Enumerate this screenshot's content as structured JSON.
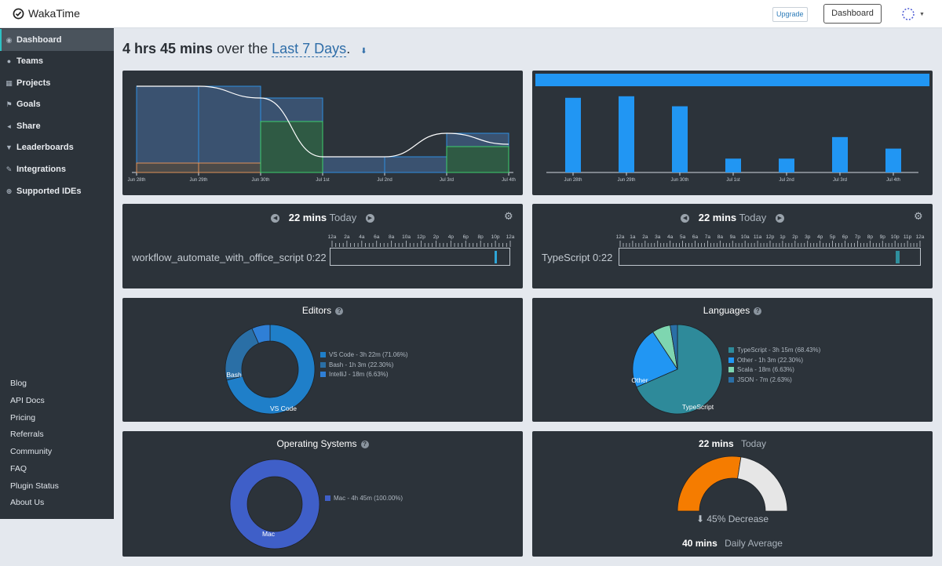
{
  "topbar": {
    "app_name": "WakaTime",
    "upgrade_label": "Upgrade",
    "dashboard_label": "Dashboard"
  },
  "sidebar": {
    "items": [
      {
        "label": "Dashboard",
        "icon": "dashboard-icon"
      },
      {
        "label": "Teams",
        "icon": "users-icon"
      },
      {
        "label": "Projects",
        "icon": "grid-icon"
      },
      {
        "label": "Goals",
        "icon": "flag-icon"
      },
      {
        "label": "Share",
        "icon": "share-icon"
      },
      {
        "label": "Leaderboards",
        "icon": "trophy-icon"
      },
      {
        "label": "Integrations",
        "icon": "wrench-icon"
      },
      {
        "label": "Supported IDEs",
        "icon": "plus-circle-icon"
      }
    ],
    "footer_links": [
      "Blog",
      "API Docs",
      "Pricing",
      "Referrals",
      "Community",
      "FAQ",
      "Plugin Status",
      "About Us"
    ]
  },
  "heading": {
    "total": "4 hrs 45 mins",
    "middle": "over the",
    "range": "Last 7 Days",
    "period": "."
  },
  "colors": {
    "accent": "#2e6da8",
    "blue_bar": "#2196f3",
    "vscode": "#1f7fc9",
    "typescript": "#2e8a9a",
    "mac": "#3f5fc8",
    "decrease": "#f57c00"
  },
  "chart_data": [
    {
      "type": "area",
      "title": "",
      "categories": [
        "Jun 28th",
        "Jun 29th",
        "Jun 30th",
        "Jul 1st",
        "Jul 2nd",
        "Jul 3rd",
        "Jul 4th"
      ],
      "series": [
        {
          "name": "",
          "values": [
            110,
            110,
            95,
            20,
            20,
            50,
            36
          ]
        },
        {
          "name": "",
          "values": [
            12,
            12,
            0,
            0,
            0,
            0,
            0
          ]
        },
        {
          "name": "",
          "values": [
            0,
            0,
            65,
            0,
            0,
            33,
            0
          ]
        }
      ],
      "ylim": [
        0,
        120
      ]
    },
    {
      "type": "bar",
      "title": "",
      "categories": [
        "Jun 28th",
        "Jun 29th",
        "Jun 30th",
        "Jul 1st",
        "Jul 2nd",
        "Jul 3rd",
        "Jul 4th"
      ],
      "values": [
        97,
        99,
        86,
        18,
        18,
        46,
        31
      ],
      "ylim": [
        0,
        110
      ]
    }
  ],
  "projects_today": {
    "time": "22 mins",
    "label": "Today",
    "project": "workflow_automate_with_office_script",
    "duration": "0:22",
    "ticks": [
      "12a",
      "2a",
      "4a",
      "6a",
      "8a",
      "10a",
      "12p",
      "2p",
      "4p",
      "6p",
      "8p",
      "10p",
      "12a"
    ]
  },
  "languages_today": {
    "time": "22 mins",
    "label": "Today",
    "language": "TypeScript",
    "duration": "0:22",
    "ticks": [
      "12a",
      "1a",
      "2a",
      "3a",
      "4a",
      "5a",
      "6a",
      "7a",
      "8a",
      "9a",
      "10a",
      "11a",
      "12p",
      "1p",
      "2p",
      "3p",
      "4p",
      "5p",
      "6p",
      "7p",
      "8p",
      "9p",
      "10p",
      "11p",
      "12a"
    ]
  },
  "editors": {
    "title": "Editors",
    "slices": [
      {
        "name": "VS Code",
        "legend": "VS Code - 3h 22m (71.06%)",
        "percent": 71.06,
        "color": "#1f7fc9"
      },
      {
        "name": "Bash",
        "legend": "Bash - 1h 3m (22.30%)",
        "percent": 22.3,
        "color": "#2a6fa6"
      },
      {
        "name": "IntelliJ",
        "legend": "IntelliJ - 18m (6.63%)",
        "percent": 6.63,
        "color": "#2f7fd6"
      }
    ]
  },
  "languages": {
    "title": "Languages",
    "slices": [
      {
        "name": "TypeScript",
        "legend": "TypeScript - 3h 15m (68.43%)",
        "percent": 68.43,
        "color": "#2e8a9a"
      },
      {
        "name": "Other",
        "legend": "Other - 1h 3m (22.30%)",
        "percent": 22.3,
        "color": "#2196f3"
      },
      {
        "name": "Scala",
        "legend": "Scala - 18m (6.63%)",
        "percent": 6.63,
        "color": "#7ed6b0"
      },
      {
        "name": "JSON",
        "legend": "JSON - 7m (2.63%)",
        "percent": 2.63,
        "color": "#2a6fa6"
      }
    ]
  },
  "operating_systems": {
    "title": "Operating Systems",
    "slices": [
      {
        "name": "Mac",
        "legend": "Mac - 4h 45m (100.00%)",
        "percent": 100.0,
        "color": "#3f5fc8"
      }
    ]
  },
  "daily_average": {
    "today_time": "22 mins",
    "today_label": "Today",
    "change": "45% Decrease",
    "change_percent": 45,
    "avg_time": "40 mins",
    "avg_label": "Daily Average"
  }
}
